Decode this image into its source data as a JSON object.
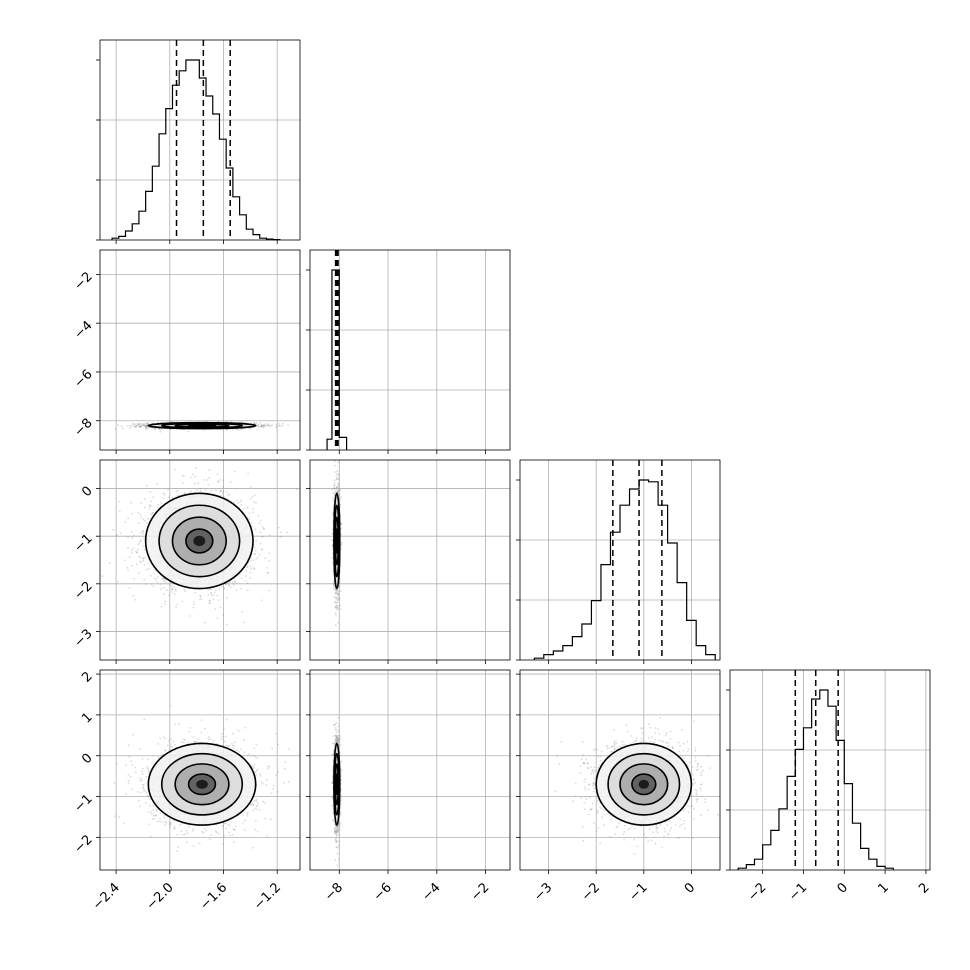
{
  "chart_data": {
    "type": "corner",
    "n_params": 4,
    "grid": true,
    "colors": {
      "line": "#000000",
      "grid": "#b0b0b0",
      "samples": "#999999"
    },
    "parameters": [
      {
        "range": [
          -2.52,
          -1.03
        ],
        "ticks": [
          -2.4,
          -2.0,
          -1.6,
          -1.2
        ],
        "tick_labels": [
          "−2.4",
          "−2.0",
          "−1.6",
          "−1.2"
        ]
      },
      {
        "range": [
          -9.2,
          -1.0
        ],
        "ticks": [
          -8,
          -6,
          -4,
          -2
        ],
        "tick_labels": [
          "−8",
          "−6",
          "−4",
          "−2"
        ]
      },
      {
        "range": [
          -3.6,
          0.6
        ],
        "ticks": [
          -3,
          -2,
          -1,
          0
        ],
        "tick_labels": [
          "−3",
          "−2",
          "−1",
          "0"
        ]
      },
      {
        "range": [
          -2.8,
          2.1
        ],
        "ticks": [
          -2,
          -1,
          0,
          1,
          2
        ],
        "tick_labels": [
          "−2",
          "−1",
          "0",
          "1",
          "2"
        ]
      }
    ],
    "y_tick_labels": [
      {
        "row": 1,
        "ticks": [
          -2,
          -4,
          -6,
          -8
        ],
        "tick_labels": [
          "−2",
          "−4",
          "−6",
          "−8"
        ]
      },
      {
        "row": 2,
        "ticks": [
          0,
          -1,
          -2,
          -3
        ],
        "tick_labels": [
          "0",
          "−1",
          "−2",
          "−3"
        ]
      },
      {
        "row": 3,
        "ticks": [
          2,
          1,
          0,
          -1,
          -2
        ],
        "tick_labels": [
          "2",
          "1",
          "0",
          "−1",
          "−2"
        ]
      }
    ],
    "histograms": [
      {
        "param": 0,
        "bin_edges": [
          -2.43,
          -2.38,
          -2.33,
          -2.28,
          -2.23,
          -2.18,
          -2.13,
          -2.08,
          -2.03,
          -1.98,
          -1.93,
          -1.88,
          -1.83,
          -1.78,
          -1.73,
          -1.68,
          -1.63,
          -1.58,
          -1.53,
          -1.48,
          -1.43,
          -1.38,
          -1.33,
          -1.28,
          -1.23,
          -1.18
        ],
        "counts": [
          0.01,
          0.02,
          0.05,
          0.09,
          0.16,
          0.27,
          0.41,
          0.59,
          0.73,
          0.86,
          0.94,
          1.0,
          1.0,
          0.9,
          0.8,
          0.7,
          0.56,
          0.4,
          0.24,
          0.14,
          0.06,
          0.03,
          0.01,
          0.005,
          0.002
        ],
        "quantiles": [
          -1.95,
          -1.75,
          -1.55
        ]
      },
      {
        "param": 1,
        "bin_edges": [
          -8.5,
          -8.3,
          -8.0,
          -7.7
        ],
        "counts": [
          0.06,
          1.0,
          0.07
        ],
        "quantiles": [
          -8.15,
          -8.1,
          -8.05
        ]
      },
      {
        "param": 2,
        "bin_edges": [
          -3.3,
          -3.1,
          -2.9,
          -2.7,
          -2.5,
          -2.3,
          -2.1,
          -1.9,
          -1.7,
          -1.5,
          -1.3,
          -1.1,
          -0.9,
          -0.7,
          -0.5,
          -0.3,
          -0.1,
          0.1,
          0.3,
          0.5
        ],
        "counts": [
          0.01,
          0.03,
          0.05,
          0.08,
          0.13,
          0.2,
          0.33,
          0.53,
          0.71,
          0.86,
          0.95,
          1.0,
          0.99,
          0.86,
          0.65,
          0.43,
          0.22,
          0.08,
          0.03
        ],
        "quantiles": [
          -1.65,
          -1.1,
          -0.62
        ]
      },
      {
        "param": 3,
        "bin_edges": [
          -2.6,
          -2.4,
          -2.2,
          -2.0,
          -1.8,
          -1.6,
          -1.4,
          -1.2,
          -1.0,
          -0.8,
          -0.6,
          -0.4,
          -0.2,
          0.0,
          0.2,
          0.4,
          0.6,
          0.8,
          1.0,
          1.2
        ],
        "counts": [
          0.01,
          0.03,
          0.06,
          0.14,
          0.22,
          0.34,
          0.52,
          0.67,
          0.79,
          0.95,
          1.0,
          0.91,
          0.72,
          0.48,
          0.26,
          0.12,
          0.06,
          0.02,
          0.01
        ],
        "quantiles": [
          -1.2,
          -0.7,
          -0.15
        ]
      }
    ],
    "pairs": [
      {
        "x": 0,
        "y": 1,
        "mean": [
          -1.76,
          -8.2
        ],
        "std": [
          0.2,
          0.06
        ]
      },
      {
        "x": 0,
        "y": 2,
        "mean": [
          -1.78,
          -1.1
        ],
        "std": [
          0.2,
          0.5
        ]
      },
      {
        "x": 1,
        "y": 2,
        "mean": [
          -8.1,
          -1.1
        ],
        "std": [
          0.06,
          0.5
        ]
      },
      {
        "x": 0,
        "y": 3,
        "mean": [
          -1.76,
          -0.7
        ],
        "std": [
          0.2,
          0.5
        ]
      },
      {
        "x": 1,
        "y": 3,
        "mean": [
          -8.1,
          -0.7
        ],
        "std": [
          0.06,
          0.5
        ]
      },
      {
        "x": 2,
        "y": 3,
        "mean": [
          -1.0,
          -0.7
        ],
        "std": [
          0.5,
          0.5
        ]
      }
    ]
  }
}
